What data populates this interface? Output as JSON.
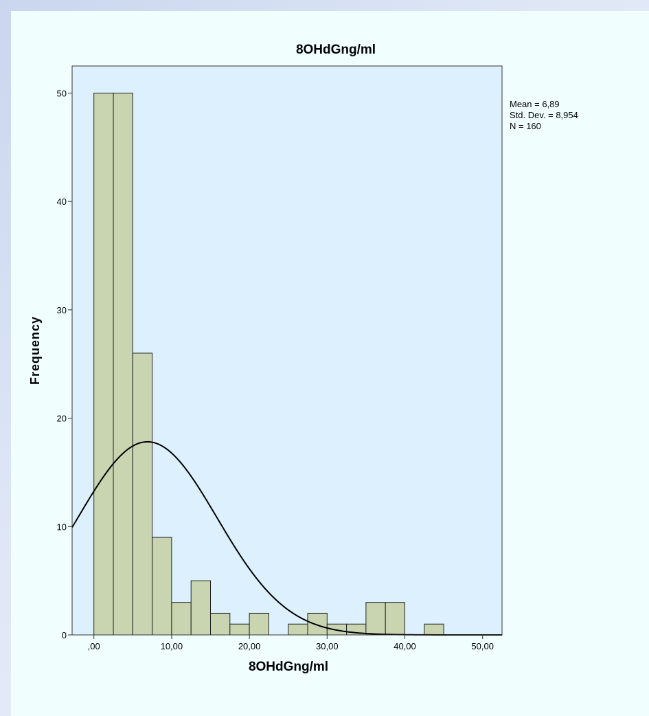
{
  "chart_data": {
    "type": "bar",
    "title": "8OHdGng/ml",
    "xlabel": "8OHdGng/ml",
    "ylabel": "Frequency",
    "bin_width": 2.5,
    "bin_starts": [
      0,
      2.5,
      5,
      7.5,
      10,
      12.5,
      15,
      17.5,
      20,
      22.5,
      25,
      27.5,
      30,
      32.5,
      35,
      37.5,
      40,
      42.5
    ],
    "values": [
      50,
      50,
      26,
      9,
      3,
      5,
      2,
      1,
      2,
      0,
      1,
      2,
      1,
      1,
      3,
      3,
      0,
      1
    ],
    "xlim": [
      -2.8,
      52.5
    ],
    "ylim": [
      0,
      52.5
    ],
    "x_ticks": [
      0,
      10,
      20,
      30,
      40,
      50
    ],
    "x_tick_labels": [
      ",00",
      "10,00",
      "20,00",
      "30,00",
      "40,00",
      "50,00"
    ],
    "y_ticks": [
      0,
      10,
      20,
      30,
      40,
      50
    ],
    "y_tick_labels": [
      "0",
      "10",
      "20",
      "30",
      "40",
      "50"
    ],
    "normal_curve": {
      "mean": 6.89,
      "std_dev": 8.954,
      "n": 160
    },
    "stats": [
      "Mean = 6,89",
      "Std. Dev. = 8,954",
      "N = 160"
    ],
    "grid": false,
    "colors": {
      "bar_fill": "#c9d4b0",
      "bar_stroke": "#222222",
      "plot_bg": "#dcf1fd",
      "outer_bg": "#f0fefe",
      "curve": "#000000"
    }
  }
}
